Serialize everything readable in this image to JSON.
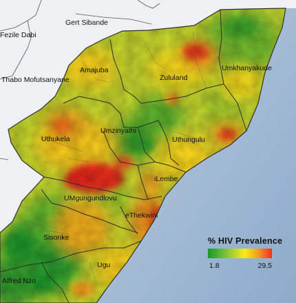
{
  "map": {
    "districts": [
      {
        "key": "gert-sibande",
        "label": "Gert Sibande",
        "scope": "outside"
      },
      {
        "key": "fezile-dabi",
        "label": "Fezile Dabi",
        "scope": "outside"
      },
      {
        "key": "thabo-mofutsanyane",
        "label": "Thabo Mofutsanyane",
        "scope": "outside"
      },
      {
        "key": "amajuba",
        "label": "Amajuba",
        "scope": "inside"
      },
      {
        "key": "zululand",
        "label": "Zululand",
        "scope": "inside"
      },
      {
        "key": "umkhanyakude",
        "label": "Umkhanyakude",
        "scope": "inside"
      },
      {
        "key": "umzinyathi",
        "label": "Umzinyathi",
        "scope": "inside"
      },
      {
        "key": "uthukela",
        "label": "Uthukela",
        "scope": "inside"
      },
      {
        "key": "uthungulu",
        "label": "Uthungulu",
        "scope": "inside"
      },
      {
        "key": "ilembe",
        "label": "iLembe",
        "scope": "inside"
      },
      {
        "key": "umgungundlovu",
        "label": "UMgungundlovu",
        "scope": "inside"
      },
      {
        "key": "ethekwini",
        "label": "eThekwini",
        "scope": "inside"
      },
      {
        "key": "sisonke",
        "label": "Sisonke",
        "scope": "inside"
      },
      {
        "key": "ugu",
        "label": "Ugu",
        "scope": "inside"
      },
      {
        "key": "alfred-nzo",
        "label": "Alfred Nzo",
        "scope": "inside"
      }
    ],
    "legend": {
      "title": "% HIV Prevalence",
      "min": "1.8",
      "max": "29.5",
      "colors": [
        "#149a2a",
        "#5db92d",
        "#b9d52c",
        "#ffea18",
        "#f9a41d",
        "#ef2f1f"
      ]
    },
    "colors": {
      "ocean": "#a9bfd6",
      "land_outside": "#eef0f1",
      "boundary": "#3a3a3a",
      "hot": "#ef2f1f",
      "low": "#149a2a"
    }
  }
}
